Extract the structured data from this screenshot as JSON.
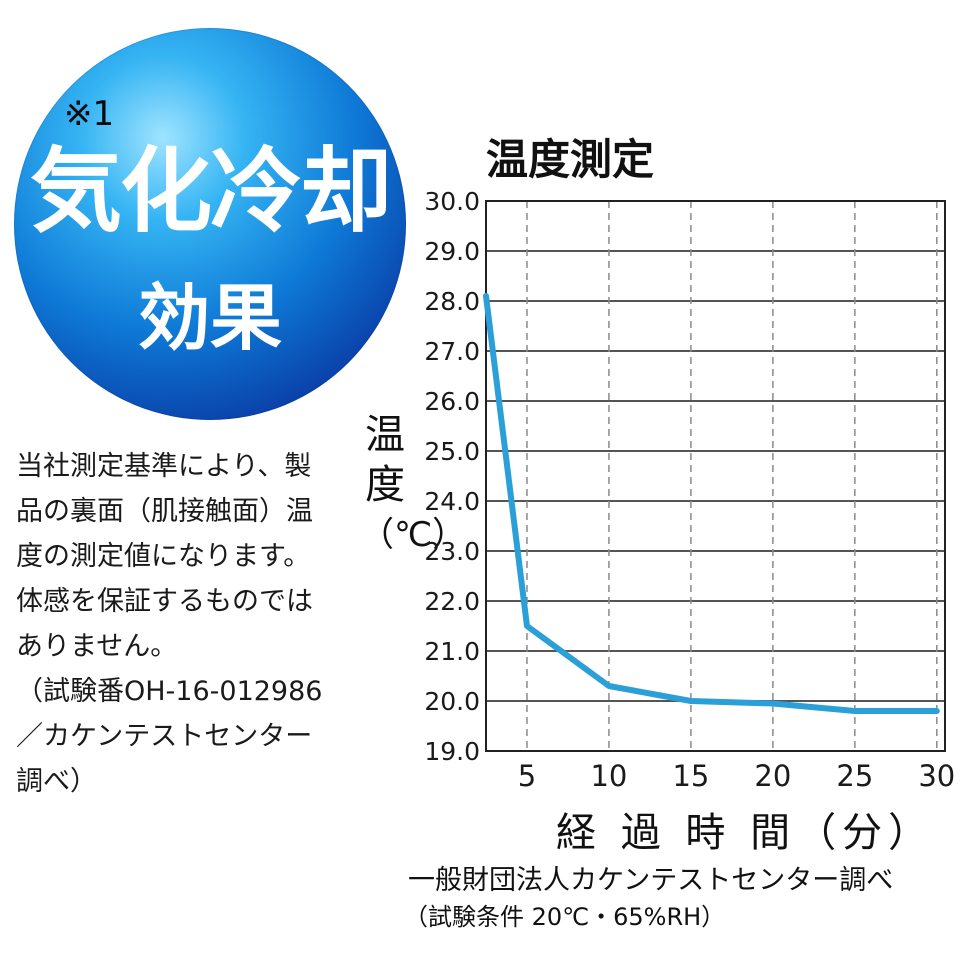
{
  "badge": {
    "note": "※1",
    "line1": "気化冷却",
    "line2": "効果"
  },
  "note": {
    "lines": [
      "当社測定基準により、製",
      "品の裏面（肌接触面）温",
      "度の測定値になります。",
      "体感を保証するものでは",
      "ありません。",
      "（試験番OH-16-012986",
      "／カケンテストセンター",
      "調べ）"
    ]
  },
  "chart_data": {
    "type": "line",
    "title": "温度測定",
    "ylabel_chars": [
      "温",
      "度",
      "（℃）"
    ],
    "xlabel": "経 過 時 間（分）",
    "x_ticks": [
      "5",
      "10",
      "15",
      "20",
      "25",
      "30"
    ],
    "y_ticks": [
      "30.0",
      "29.0",
      "28.0",
      "27.0",
      "26.0",
      "25.0",
      "24.0",
      "23.0",
      "22.0",
      "21.0",
      "20.0",
      "19.0"
    ],
    "xlim": [
      2.5,
      30.5
    ],
    "ylim": [
      19.0,
      30.0
    ],
    "grid": true,
    "series": [
      {
        "color": "#2b9fd8",
        "x": [
          2.5,
          5,
          10,
          15,
          20,
          25,
          30
        ],
        "y": [
          28.1,
          21.5,
          20.3,
          20.0,
          19.95,
          19.8,
          19.8
        ]
      }
    ],
    "colors": {
      "line": "#2b9fd8",
      "grid_h": "#555555",
      "grid_v": "#8a8a8a",
      "frame": "#222222"
    }
  },
  "source": {
    "line1": "一般財団法人カケンテストセンター調べ",
    "line2": "（試験条件 20℃・65%RH）"
  }
}
